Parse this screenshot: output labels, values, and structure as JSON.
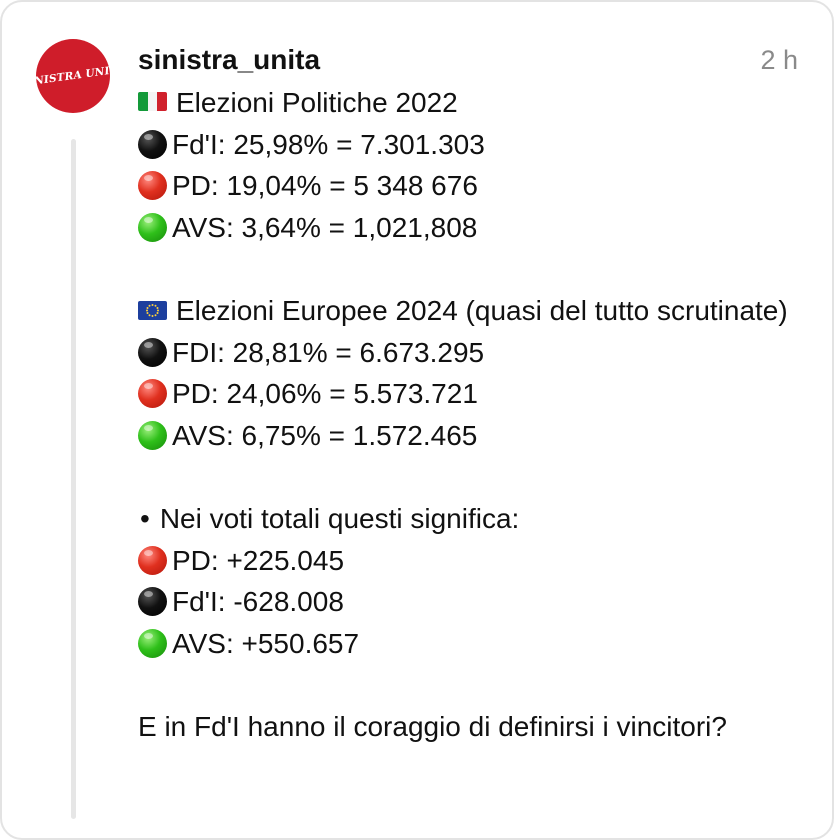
{
  "post": {
    "username": "sinistra_unita",
    "timestamp": "2 h",
    "avatar_text": "SINISTRA UNITA",
    "section1": {
      "title": "Elezioni Politiche 2022",
      "lines": [
        {
          "color": "black",
          "text": "Fd'I: 25,98% = 7.301.303"
        },
        {
          "color": "red",
          "text": "PD: 19,04% = 5 348 676"
        },
        {
          "color": "green",
          "text": "AVS: 3,64% = 1,021,808"
        }
      ]
    },
    "section2": {
      "title": "Elezioni Europee 2024 (quasi del tutto scrutinate)",
      "lines": [
        {
          "color": "black",
          "text": "FDI: 28,81% = 6.673.295"
        },
        {
          "color": "red",
          "text": "PD: 24,06% = 5.573.721"
        },
        {
          "color": "green",
          "text": "AVS: 6,75% = 1.572.465"
        }
      ]
    },
    "section3": {
      "bullet": "•",
      "title": "Nei voti totali questi significa:",
      "lines": [
        {
          "color": "red",
          "text": "PD: +225.045"
        },
        {
          "color": "black",
          "text": "Fd'I: -628.008"
        },
        {
          "color": "green",
          "text": "AVS: +550.657"
        }
      ]
    },
    "closing": "E in Fd'I hanno il coraggio di definirsi i vincitori?"
  },
  "icons": {
    "italy_flag": "italy-flag-icon",
    "eu_flag": "eu-flag-icon",
    "dot_black": "black-circle-icon",
    "dot_red": "red-circle-icon",
    "dot_green": "green-circle-icon"
  },
  "colors": {
    "brand_red": "#cf1d2a",
    "muted": "#8a8a8a",
    "border": "#e3e3e3"
  }
}
